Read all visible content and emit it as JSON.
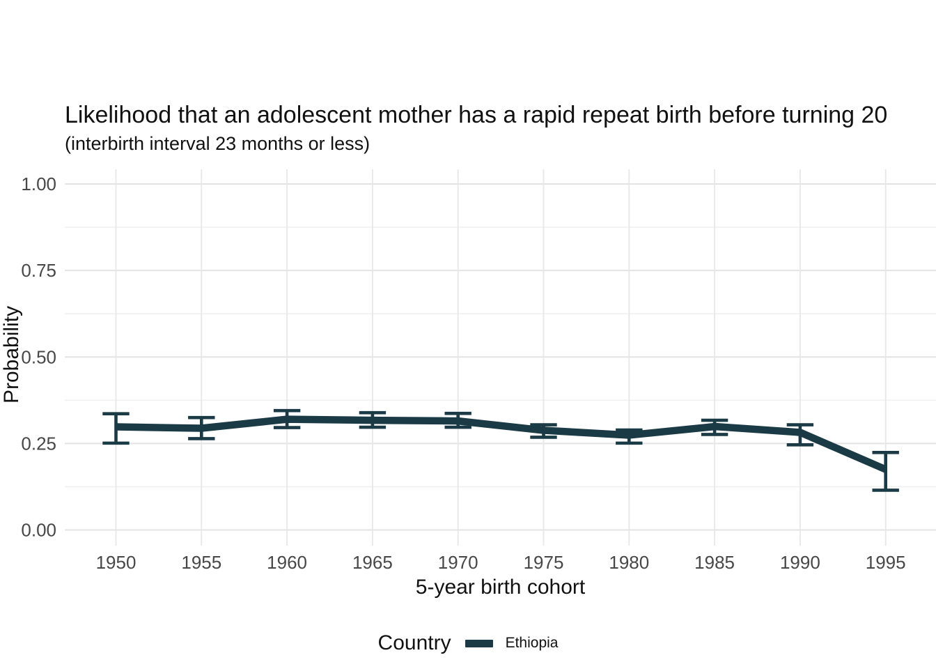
{
  "title": "Likelihood that an adolescent mother has a rapid repeat birth before turning 20",
  "subtitle": "(interbirth interval 23 months or less)",
  "colors": {
    "series": "#1a3a45",
    "grid_major": "#e3e3e3",
    "grid_minor": "#f0f0f0",
    "grid_vertical": "#e7e7e7",
    "tick_text": "#474747",
    "title_text": "#111111",
    "background": "#ffffff"
  },
  "chart_data": {
    "type": "line",
    "title": "Likelihood that an adolescent mother has a rapid repeat birth before turning 20",
    "subtitle": "(interbirth interval 23 months or less)",
    "xlabel": "5-year birth cohort",
    "ylabel": "Probability",
    "x": [
      1950,
      1955,
      1960,
      1965,
      1970,
      1975,
      1980,
      1985,
      1990,
      1995
    ],
    "x_tick_labels": [
      "1950",
      "1955",
      "1960",
      "1965",
      "1970",
      "1975",
      "1980",
      "1985",
      "1990",
      "1995"
    ],
    "series": [
      {
        "name": "Ethiopia",
        "values": [
          0.298,
          0.294,
          0.32,
          0.317,
          0.315,
          0.288,
          0.274,
          0.299,
          0.282,
          0.175
        ],
        "ci_lower": [
          0.251,
          0.264,
          0.296,
          0.297,
          0.297,
          0.268,
          0.251,
          0.276,
          0.246,
          0.115
        ],
        "ci_upper": [
          0.336,
          0.325,
          0.345,
          0.339,
          0.337,
          0.304,
          0.289,
          0.317,
          0.304,
          0.224
        ],
        "color": "#1a3a45"
      }
    ],
    "ylim": [
      0,
      1
    ],
    "yticks": [
      0.0,
      0.25,
      0.5,
      0.75,
      1.0
    ],
    "ytick_labels": [
      "0.00",
      "0.25",
      "0.50",
      "0.75",
      "1.00"
    ],
    "yticks_minor": [
      0.125,
      0.375,
      0.625,
      0.875
    ],
    "grid": "horizontal major+minor, vertical major only",
    "error_bars": true,
    "legend": {
      "position": "bottom",
      "title": "Country",
      "entries": [
        {
          "label": "Ethiopia",
          "color": "#1a3a45"
        }
      ]
    }
  }
}
